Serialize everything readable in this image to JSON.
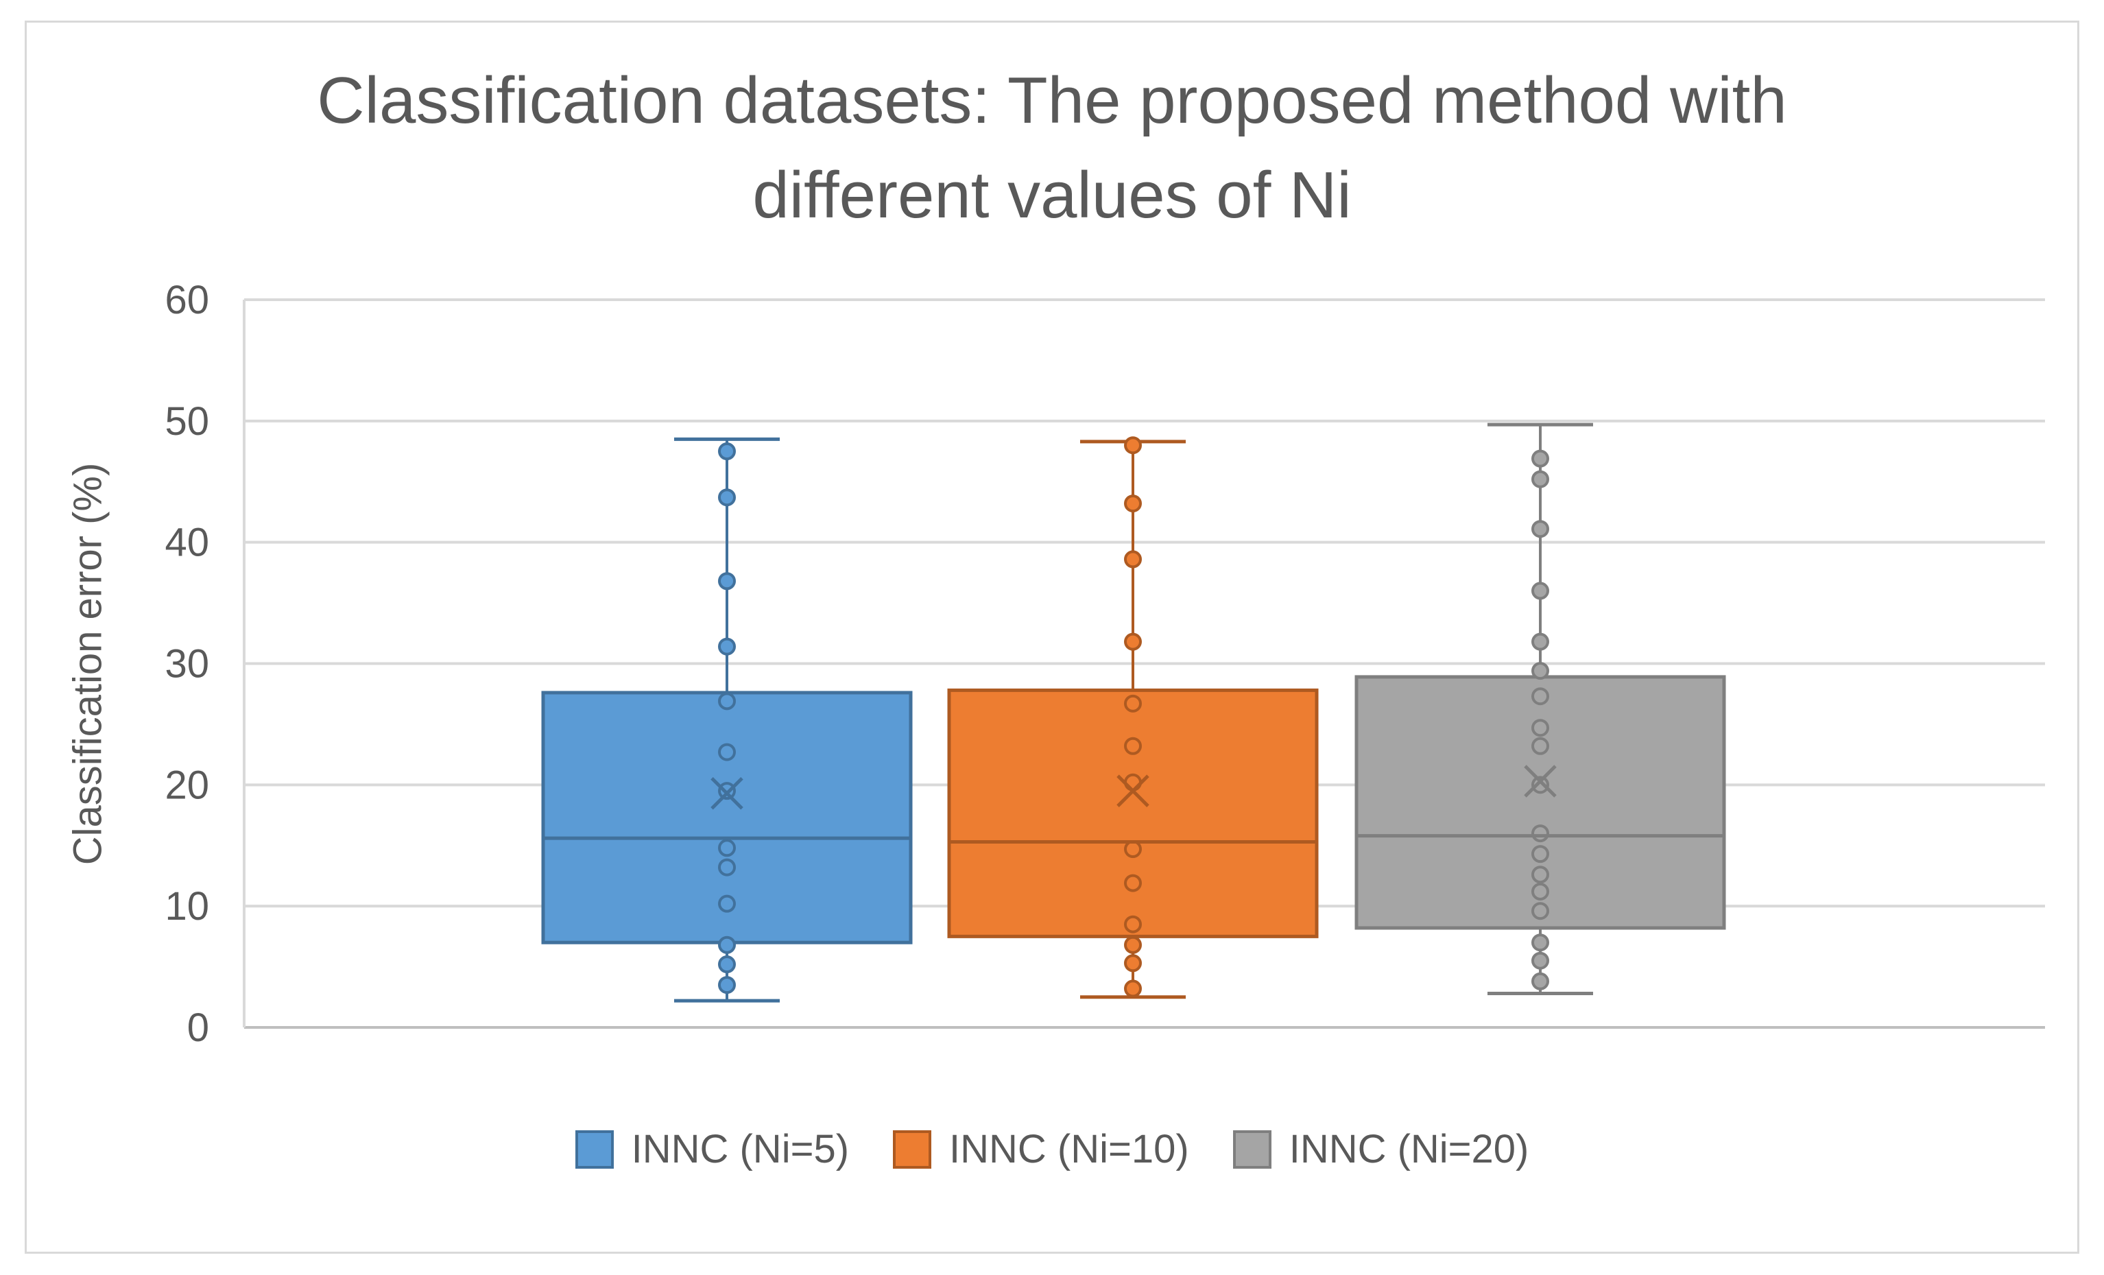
{
  "chart_data": {
    "type": "boxplot",
    "title_lines": [
      "Classification datasets: The proposed method with",
      "different values of Ni"
    ],
    "xlabel": "",
    "ylabel": "Classification error (%)",
    "ylim": [
      0,
      60
    ],
    "yticks": [
      0,
      10,
      20,
      30,
      40,
      50,
      60
    ],
    "grid": true,
    "legend_position": "bottom",
    "series": [
      {
        "name": "INNC (Ni=5)",
        "color": "#5b9bd5",
        "edge": "#41719c",
        "min": 2.2,
        "q1": 7.0,
        "median": 15.6,
        "q3": 27.6,
        "max": 48.5,
        "mean": 19.3,
        "points": [
          3.5,
          5.2,
          6.8,
          10.2,
          13.2,
          14.8,
          19.5,
          22.7,
          26.9,
          31.4,
          36.8,
          43.7,
          47.5
        ]
      },
      {
        "name": "INNC (Ni=10)",
        "color": "#ed7d31",
        "edge": "#ae5a21",
        "min": 2.5,
        "q1": 7.5,
        "median": 15.3,
        "q3": 27.8,
        "max": 48.3,
        "mean": 19.5,
        "points": [
          3.2,
          5.3,
          6.8,
          8.5,
          11.9,
          14.7,
          20.2,
          23.2,
          26.7,
          31.8,
          38.6,
          43.2,
          48.0
        ]
      },
      {
        "name": "INNC (Ni=20)",
        "color": "#a5a5a5",
        "edge": "#7f7f7f",
        "min": 2.8,
        "q1": 8.2,
        "median": 15.8,
        "q3": 28.9,
        "max": 49.7,
        "mean": 20.3,
        "points": [
          3.8,
          5.5,
          7.0,
          9.6,
          11.2,
          12.6,
          14.3,
          16.0,
          20.0,
          23.2,
          24.7,
          27.3,
          29.4,
          31.8,
          36.0,
          41.1,
          45.2,
          46.9
        ]
      }
    ]
  }
}
